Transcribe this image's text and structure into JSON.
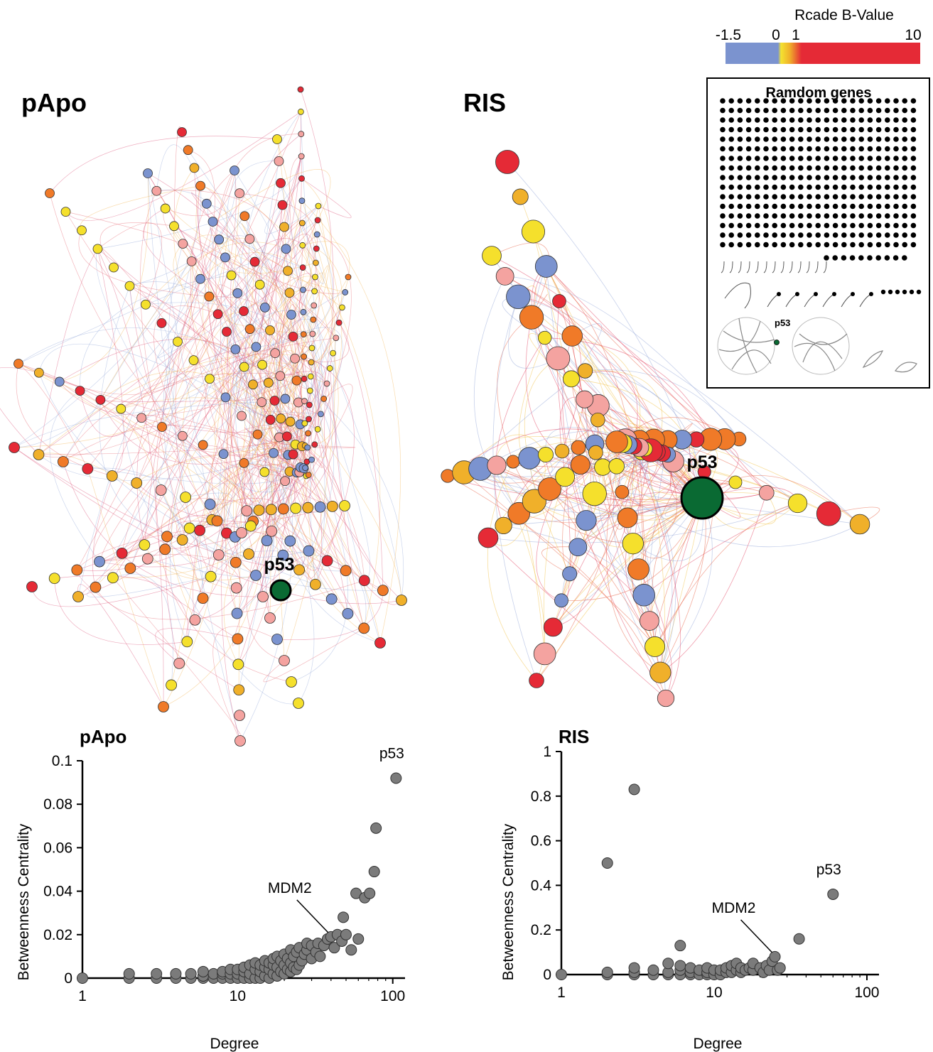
{
  "legend": {
    "title": "Rcade B-Value",
    "ticks": [
      "-1.5",
      "0",
      "1",
      "10"
    ],
    "colors": {
      "low": "#7b93cf",
      "zero": "#f4e330",
      "mid": "#f0a030",
      "high": "#e52a36"
    }
  },
  "networks": {
    "papo_title": "pApo",
    "ris_title": "RIS",
    "papo_hub_label": "p53",
    "ris_hub_label": "p53",
    "hub_color": "#0a6a33",
    "node_colors": [
      "#7b93cf",
      "#e52a36",
      "#f4a3a0",
      "#f07a28",
      "#f5e02c",
      "#f0b02a"
    ]
  },
  "inset": {
    "title": "Ramdom genes",
    "p53_label": "p53"
  },
  "chart_data": [
    {
      "type": "scatter",
      "title": "pApo",
      "xlabel": "Degree",
      "ylabel": "Betweenness Centrality",
      "xscale": "log",
      "xlim": [
        1,
        120
      ],
      "ylim": [
        0,
        0.1
      ],
      "xticks": [
        "1",
        "10",
        "100"
      ],
      "yticks": [
        "0",
        "0.02",
        "0.04",
        "0.06",
        "0.08",
        "0.1"
      ],
      "annotations": [
        {
          "text": "p53",
          "x": 105,
          "y": 0.092
        },
        {
          "text": "MDM2",
          "x": 40,
          "y": 0.019
        }
      ],
      "points": [
        [
          1,
          0
        ],
        [
          2,
          0
        ],
        [
          2,
          0.002
        ],
        [
          3,
          0
        ],
        [
          3,
          0.002
        ],
        [
          4,
          0
        ],
        [
          4,
          0.002
        ],
        [
          5,
          0
        ],
        [
          5,
          0.002
        ],
        [
          6,
          0
        ],
        [
          6,
          0.001
        ],
        [
          6,
          0.003
        ],
        [
          7,
          0
        ],
        [
          7,
          0.002
        ],
        [
          8,
          0
        ],
        [
          8,
          0.002
        ],
        [
          8,
          0.003
        ],
        [
          9,
          0
        ],
        [
          9,
          0.002
        ],
        [
          9,
          0.004
        ],
        [
          10,
          0
        ],
        [
          10,
          0.002
        ],
        [
          10,
          0.004
        ],
        [
          11,
          0
        ],
        [
          11,
          0.003
        ],
        [
          11,
          0.005
        ],
        [
          12,
          0
        ],
        [
          12,
          0.002
        ],
        [
          12,
          0.006
        ],
        [
          13,
          0
        ],
        [
          13,
          0.004
        ],
        [
          13,
          0.007
        ],
        [
          14,
          0
        ],
        [
          14,
          0.003
        ],
        [
          14,
          0.006
        ],
        [
          15,
          0.001
        ],
        [
          15,
          0.005
        ],
        [
          15,
          0.008
        ],
        [
          16,
          0
        ],
        [
          16,
          0.004
        ],
        [
          16,
          0.007
        ],
        [
          17,
          0.002
        ],
        [
          17,
          0.006
        ],
        [
          17,
          0.009
        ],
        [
          18,
          0.001
        ],
        [
          18,
          0.005
        ],
        [
          18,
          0.01
        ],
        [
          19,
          0.003
        ],
        [
          19,
          0.008
        ],
        [
          20,
          0.002
        ],
        [
          20,
          0.006
        ],
        [
          20,
          0.011
        ],
        [
          21,
          0.004
        ],
        [
          21,
          0.009
        ],
        [
          22,
          0.003
        ],
        [
          22,
          0.007
        ],
        [
          22,
          0.013
        ],
        [
          23,
          0.005
        ],
        [
          23,
          0.01
        ],
        [
          24,
          0.004
        ],
        [
          24,
          0.012
        ],
        [
          25,
          0.006
        ],
        [
          25,
          0.014
        ],
        [
          26,
          0.008
        ],
        [
          27,
          0.011
        ],
        [
          28,
          0.013
        ],
        [
          28,
          0.016
        ],
        [
          30,
          0.009
        ],
        [
          30,
          0.015
        ],
        [
          32,
          0.012
        ],
        [
          33,
          0.016
        ],
        [
          34,
          0.01
        ],
        [
          36,
          0.015
        ],
        [
          38,
          0.018
        ],
        [
          40,
          0.019
        ],
        [
          42,
          0.014
        ],
        [
          44,
          0.02
        ],
        [
          47,
          0.017
        ],
        [
          48,
          0.028
        ],
        [
          50,
          0.02
        ],
        [
          54,
          0.013
        ],
        [
          58,
          0.039
        ],
        [
          60,
          0.018
        ],
        [
          66,
          0.037
        ],
        [
          71,
          0.039
        ],
        [
          76,
          0.049
        ],
        [
          78,
          0.069
        ],
        [
          105,
          0.092
        ]
      ]
    },
    {
      "type": "scatter",
      "title": "RIS",
      "xlabel": "Degree",
      "ylabel": "Betweenness Centrality",
      "xscale": "log",
      "xlim": [
        1,
        120
      ],
      "ylim": [
        0,
        1
      ],
      "xticks": [
        "1",
        "10",
        "100"
      ],
      "yticks": [
        "0",
        "0.2",
        "0.4",
        "0.6",
        "0.8",
        "1"
      ],
      "annotations": [
        {
          "text": "p53",
          "x": 60,
          "y": 0.36
        },
        {
          "text": "MDM2",
          "x": 25,
          "y": 0.08
        }
      ],
      "points": [
        [
          1,
          0
        ],
        [
          2,
          0
        ],
        [
          2,
          0.01
        ],
        [
          2,
          0.5
        ],
        [
          3,
          0
        ],
        [
          3,
          0.01
        ],
        [
          3,
          0.03
        ],
        [
          3,
          0.83
        ],
        [
          4,
          0
        ],
        [
          4,
          0.02
        ],
        [
          5,
          0
        ],
        [
          5,
          0.01
        ],
        [
          5,
          0.05
        ],
        [
          6,
          0
        ],
        [
          6,
          0.02
        ],
        [
          6,
          0.04
        ],
        [
          6,
          0.13
        ],
        [
          7,
          0
        ],
        [
          7,
          0.01
        ],
        [
          7,
          0.03
        ],
        [
          8,
          0
        ],
        [
          8,
          0.02
        ],
        [
          9,
          0
        ],
        [
          9,
          0.01
        ],
        [
          9,
          0.03
        ],
        [
          10,
          0
        ],
        [
          10,
          0.02
        ],
        [
          11,
          0
        ],
        [
          11,
          0.02
        ],
        [
          12,
          0.01
        ],
        [
          12,
          0.03
        ],
        [
          13,
          0.01
        ],
        [
          13,
          0.04
        ],
        [
          14,
          0.02
        ],
        [
          14,
          0.05
        ],
        [
          15,
          0.01
        ],
        [
          15,
          0.03
        ],
        [
          16,
          0.02
        ],
        [
          17,
          0.03
        ],
        [
          18,
          0.02
        ],
        [
          18,
          0.05
        ],
        [
          20,
          0.03
        ],
        [
          21,
          0.01
        ],
        [
          22,
          0.04
        ],
        [
          23,
          0.02
        ],
        [
          24,
          0.06
        ],
        [
          25,
          0.08
        ],
        [
          26,
          0.02
        ],
        [
          27,
          0.03
        ],
        [
          36,
          0.16
        ],
        [
          60,
          0.36
        ]
      ]
    }
  ]
}
